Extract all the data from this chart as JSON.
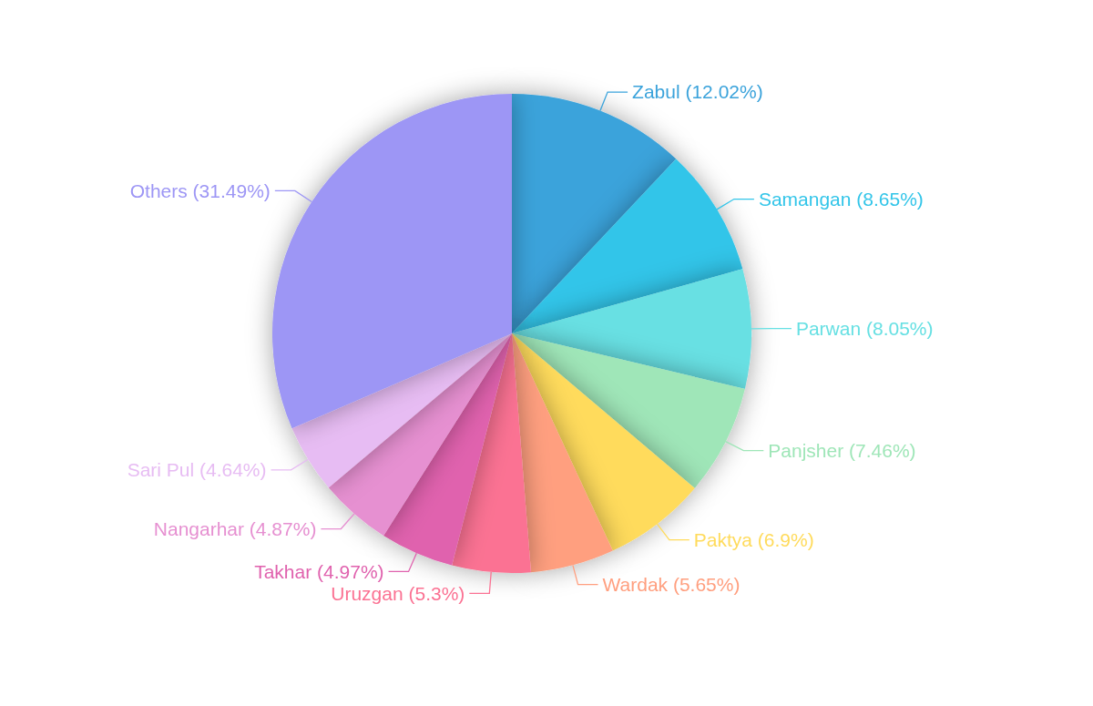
{
  "chart_data": {
    "type": "pie",
    "categories": [
      "Zabul",
      "Samangan",
      "Parwan",
      "Panjsher",
      "Paktya",
      "Wardak",
      "Uruzgan",
      "Takhar",
      "Nangarhar",
      "Sari Pul",
      "Others"
    ],
    "values": [
      12.02,
      8.65,
      8.05,
      7.46,
      6.9,
      5.65,
      5.3,
      4.97,
      4.87,
      4.64,
      31.49
    ],
    "value_labels": [
      "(12.02%)",
      "(8.65%)",
      "(8.05%)",
      "(7.46%)",
      "(6.9%)",
      "(5.65%)",
      "(5.3%)",
      "(4.97%)",
      "(4.87%)",
      "(4.64%)",
      "(31.49%)"
    ],
    "colors": [
      "#3ba3db",
      "#32c5e9",
      "#67e0e3",
      "#9fe6b8",
      "#ffdb5c",
      "#ff9f7f",
      "#fb7293",
      "#e062ae",
      "#e690d1",
      "#e7bcf3",
      "#9d96f5"
    ]
  }
}
